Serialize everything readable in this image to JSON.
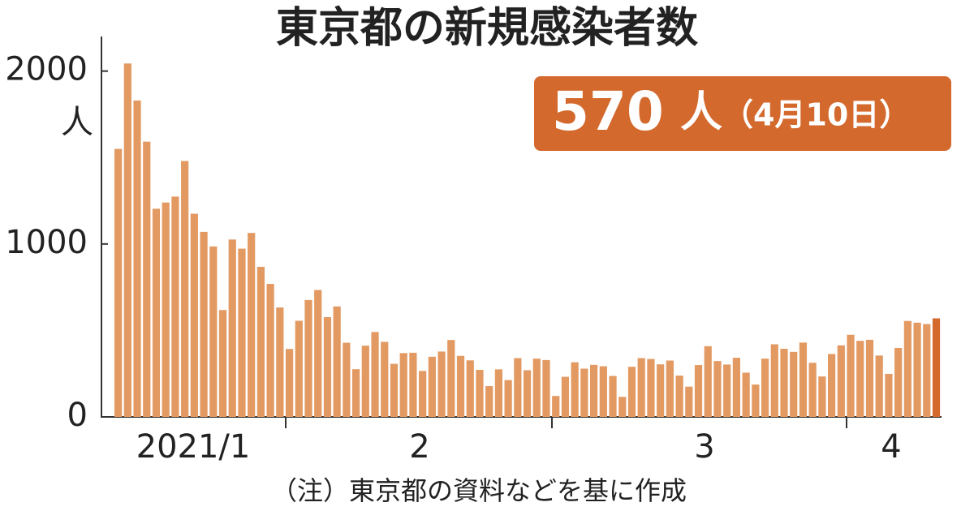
{
  "chart_data": {
    "type": "bar",
    "title": "東京都の新規感染者数",
    "y_unit": "人",
    "annotation": {
      "value": 570,
      "unit": "人",
      "date": "（4月10日）"
    },
    "note": "（注）東京都の資料などを基に作成",
    "month_labels": [
      "2021/1",
      "2",
      "3",
      "4"
    ],
    "color": "#e39a62",
    "highlight_color": "#d4692d",
    "ylim": [
      0,
      2200
    ],
    "yticks": [
      0,
      1000,
      2000
    ],
    "values": [
      1550,
      2044,
      1830,
      1592,
      1204,
      1240,
      1274,
      1480,
      1175,
      1070,
      986,
      618,
      1026,
      973,
      1064,
      868,
      769,
      633,
      393,
      556,
      676,
      734,
      577,
      639,
      429,
      276,
      412,
      491,
      434,
      307,
      369,
      371,
      266,
      348,
      378,
      445,
      353,
      327,
      272,
      178,
      275,
      213,
      340,
      270,
      337,
      329,
      121,
      232,
      316,
      279,
      301,
      293,
      237,
      116,
      290,
      340,
      335,
      304,
      326,
      239,
      175,
      300,
      409,
      323,
      303,
      342,
      256,
      187,
      337,
      420,
      394,
      376,
      430,
      313,
      234,
      364,
      414,
      475,
      440,
      446,
      355,
      249,
      399,
      555,
      545,
      537,
      570
    ]
  }
}
